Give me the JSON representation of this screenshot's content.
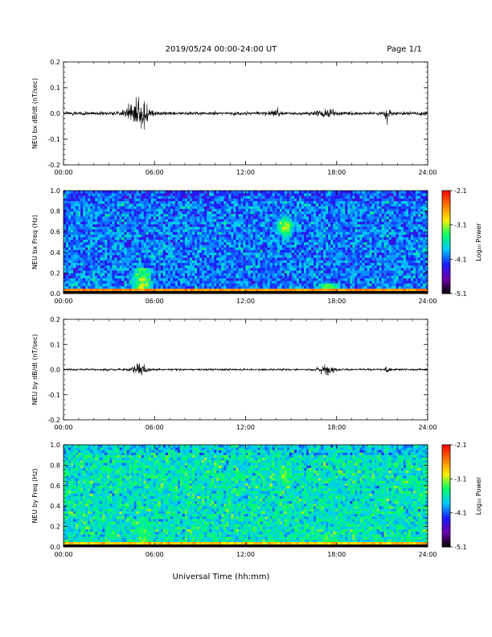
{
  "header": {
    "title": "2019/05/24  00:00-24:00 UT",
    "page": "Page 1/1"
  },
  "footer": {
    "xlabel": "Universal Time (hh:mm)"
  },
  "colors": {
    "waveform": "#000000",
    "frame": "#000000",
    "colormap": [
      "#000000",
      "#6a00a8",
      "#1a1aff",
      "#00c8ff",
      "#00ff66",
      "#ffee00",
      "#ff7a00",
      "#ff0000"
    ]
  },
  "chart_data": [
    {
      "type": "line",
      "ylabel": "NEU bx dB/dt (nT/sec)",
      "xlim": [
        "00:00",
        "24:00"
      ],
      "ylim": [
        -0.2,
        0.2
      ],
      "x_tick_labels": [
        "00:00",
        "06:00",
        "12:00",
        "18:00",
        "24:00"
      ],
      "y_tick_labels": [
        "0.2",
        "0.1",
        "0.0",
        "-0.1",
        "-0.2"
      ],
      "y_ticks": [
        0.2,
        0.1,
        0.0,
        -0.1,
        -0.2
      ],
      "series": [
        {
          "values_description_units": "nT/sec",
          "baseline": 0.0,
          "noise_amplitude": 0.012,
          "events": [
            {
              "hour": 4.7,
              "amplitude": 0.11,
              "width_h": 1.0
            },
            {
              "hour": 5.4,
              "amplitude": 0.07,
              "width_h": 0.5
            },
            {
              "hour": 14.0,
              "amplitude": 0.03,
              "width_h": 0.4
            },
            {
              "hour": 17.3,
              "amplitude": 0.025,
              "width_h": 1.2
            },
            {
              "hour": 21.3,
              "amplitude": 0.06,
              "width_h": 0.3
            }
          ]
        }
      ]
    },
    {
      "type": "heatmap",
      "ylabel": "NEU bx Freq (Hz)",
      "xlim": [
        "00:00",
        "24:00"
      ],
      "ylim": [
        0.0,
        1.0
      ],
      "x_tick_labels": [
        "00:00",
        "06:00",
        "12:00",
        "18:00",
        "24:00"
      ],
      "y_tick_labels": [
        "1.0",
        "0.8",
        "0.6",
        "0.4",
        "0.2",
        "0.0"
      ],
      "y_ticks": [
        1.0,
        0.8,
        0.6,
        0.4,
        0.2,
        0.0
      ],
      "colorbar": {
        "label": "Log₁₀ Power",
        "range": [
          -5.1,
          -2.1
        ],
        "tick_labels": [
          "-2.1",
          "-3.1",
          "-4.1",
          "-5.1"
        ],
        "ticks": [
          -2.1,
          -3.1,
          -4.1,
          -5.1
        ]
      },
      "features": [
        {
          "hour": 5.2,
          "freq_max": 0.25,
          "level": -3.0
        },
        {
          "hour": 14.6,
          "freq_center": 0.65,
          "level": -3.1
        },
        {
          "hour": 17.5,
          "freq_max": 0.1,
          "level": -2.9
        }
      ],
      "background_level": -4.0,
      "low_freq_level": -2.6
    },
    {
      "type": "line",
      "ylabel": "NEU by dB/dt (nT/sec)",
      "xlim": [
        "00:00",
        "24:00"
      ],
      "ylim": [
        -0.2,
        0.2
      ],
      "x_tick_labels": [
        "00:00",
        "06:00",
        "12:00",
        "18:00",
        "24:00"
      ],
      "y_tick_labels": [
        "0.2",
        "0.1",
        "0.0",
        "-0.1",
        "-0.2"
      ],
      "y_ticks": [
        0.2,
        0.1,
        0.0,
        -0.1,
        -0.2
      ],
      "series": [
        {
          "values_description_units": "nT/sec",
          "baseline": 0.0,
          "noise_amplitude": 0.007,
          "events": [
            {
              "hour": 5.0,
              "amplitude": 0.05,
              "width_h": 0.8
            },
            {
              "hour": 17.3,
              "amplitude": 0.03,
              "width_h": 1.0
            },
            {
              "hour": 21.3,
              "amplitude": 0.02,
              "width_h": 0.4
            }
          ]
        }
      ]
    },
    {
      "type": "heatmap",
      "ylabel": "NEU by Freq (Hz)",
      "xlim": [
        "00:00",
        "24:00"
      ],
      "ylim": [
        0.0,
        1.0
      ],
      "x_tick_labels": [
        "00:00",
        "06:00",
        "12:00",
        "18:00",
        "24:00"
      ],
      "y_tick_labels": [
        "1.0",
        "0.8",
        "0.6",
        "0.4",
        "0.2",
        "0.0"
      ],
      "y_ticks": [
        1.0,
        0.8,
        0.6,
        0.4,
        0.2,
        0.0
      ],
      "colorbar": {
        "label": "Log₁₀ Power",
        "range": [
          -5.1,
          -2.1
        ],
        "tick_labels": [
          "-2.1",
          "-3.1",
          "-4.1",
          "-5.1"
        ],
        "ticks": [
          -2.1,
          -3.1,
          -4.1,
          -5.1
        ]
      },
      "features": [
        {
          "hour": 5.3,
          "freq_max": 0.2,
          "level": -3.1
        },
        {
          "hour": 14.6,
          "freq_center": 0.7,
          "level": -3.2
        },
        {
          "hour": 17.5,
          "freq_max": 0.1,
          "level": -3.0
        }
      ],
      "background_level": -3.6,
      "low_freq_level": -2.8
    }
  ]
}
